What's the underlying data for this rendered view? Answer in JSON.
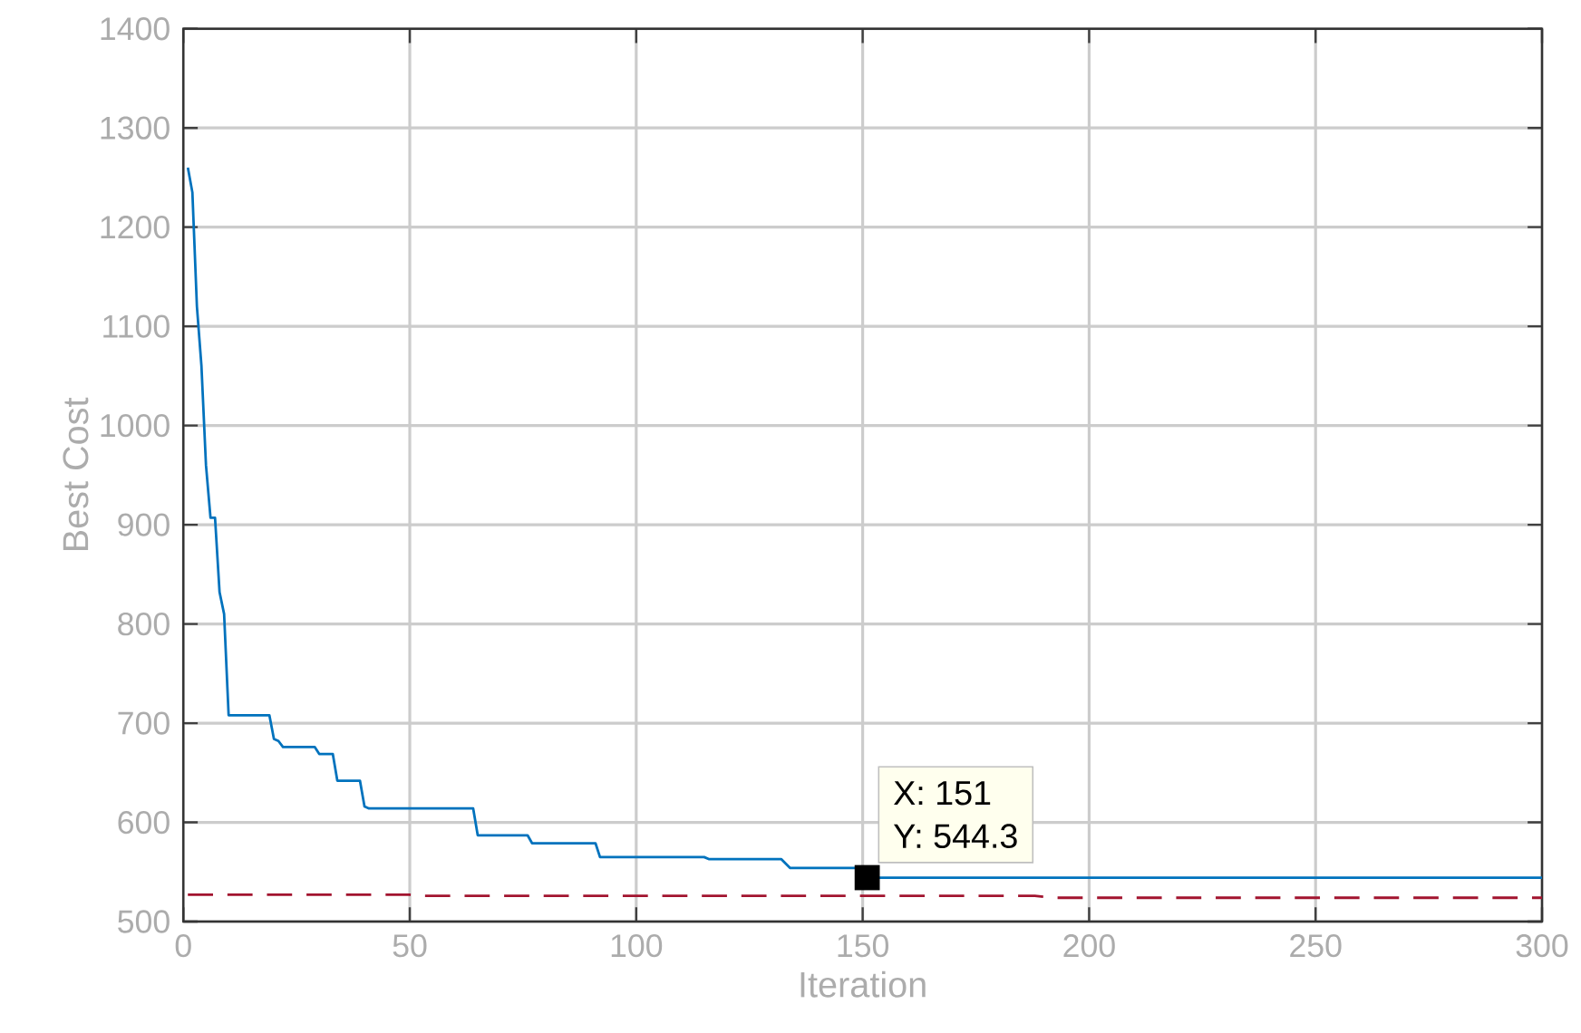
{
  "chart_data": {
    "type": "line",
    "xlabel": "Iteration",
    "ylabel": "Best Cost",
    "xlim": [
      0,
      300
    ],
    "ylim": [
      500,
      1400
    ],
    "xticks": [
      0,
      50,
      100,
      150,
      200,
      250,
      300
    ],
    "yticks": [
      500,
      600,
      700,
      800,
      900,
      1000,
      1100,
      1200,
      1300,
      1400
    ],
    "grid": true,
    "series": [
      {
        "color": "#0072bd",
        "line_style": "solid",
        "x": [
          1,
          2,
          3,
          4,
          5,
          6,
          7,
          8,
          9,
          10,
          19,
          20,
          21,
          22,
          29,
          30,
          33,
          34,
          39,
          40,
          41,
          64,
          65,
          76,
          77,
          91,
          92,
          115,
          116,
          132,
          134,
          150,
          151,
          300
        ],
        "values": [
          1260,
          1235,
          1120,
          1060,
          960,
          907,
          907,
          832,
          810,
          708,
          708,
          684,
          682,
          676,
          676,
          669,
          669,
          642,
          642,
          616,
          614,
          614,
          587,
          587,
          579,
          579,
          565,
          565,
          563,
          563,
          554,
          554,
          544.3,
          544.3
        ]
      },
      {
        "color": "#a2142f",
        "line_style": "dashed",
        "x": [
          1,
          50,
          52,
          188,
          192,
          300
        ],
        "values": [
          527,
          527,
          526,
          526,
          524,
          524
        ]
      }
    ],
    "annotations": [
      {
        "text": "X: 151",
        "x": 151,
        "y": 544.3
      },
      "Y: 544.3"
    ]
  }
}
